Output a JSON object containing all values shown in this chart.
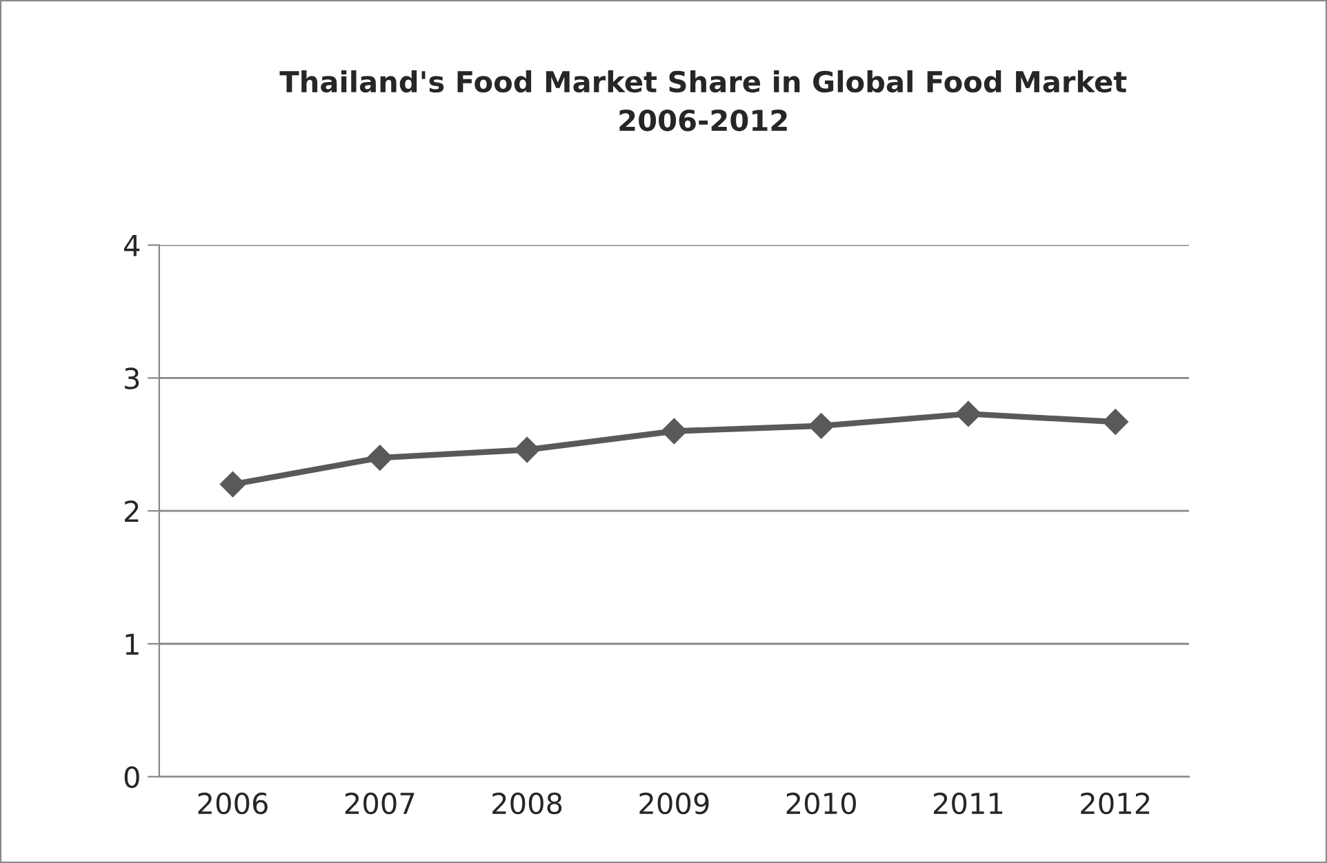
{
  "chart_data": {
    "type": "line",
    "title": "Thailand's Food Market Share in Global Food Market\n2006-2012",
    "categories": [
      "2006",
      "2007",
      "2008",
      "2009",
      "2010",
      "2011",
      "2012"
    ],
    "series": [
      {
        "color": "#595959",
        "values": [
          2.2,
          2.4,
          2.46,
          2.6,
          2.64,
          2.73,
          2.67
        ]
      }
    ],
    "ylim": [
      0,
      4
    ],
    "yticks": [
      0,
      1,
      2,
      3,
      4
    ],
    "grid": "y",
    "marker": "diamond",
    "line_style": "solid",
    "legend": false
  }
}
